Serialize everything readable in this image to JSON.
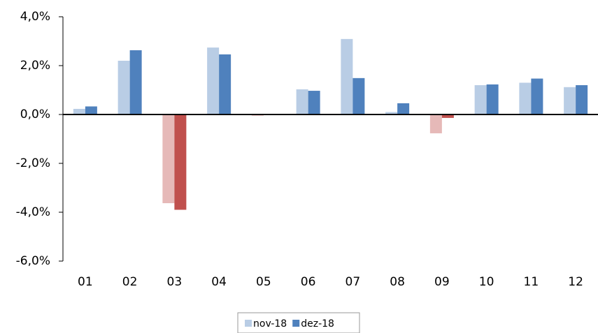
{
  "chart_data": {
    "type": "bar",
    "categories": [
      "01",
      "02",
      "03",
      "04",
      "05",
      "06",
      "07",
      "08",
      "09",
      "10",
      "11",
      "12"
    ],
    "series": [
      {
        "name": "nov-18",
        "color": "#b9cde5",
        "negative_color": "#e6b9b8",
        "values": [
          0.23,
          2.2,
          -3.63,
          2.74,
          -0.05,
          1.03,
          3.09,
          0.1,
          -0.77,
          1.2,
          1.3,
          1.12
        ]
      },
      {
        "name": "dez-18",
        "color": "#4f81bd",
        "negative_color": "#c0504d",
        "values": [
          0.33,
          2.63,
          -3.9,
          2.46,
          -0.02,
          0.97,
          1.49,
          0.46,
          -0.14,
          1.23,
          1.47,
          1.2
        ]
      }
    ],
    "ylim": [
      -6,
      4
    ],
    "yticks": [
      {
        "value": -6,
        "label": "-6,0%"
      },
      {
        "value": -4,
        "label": "-4,0%"
      },
      {
        "value": -2,
        "label": "-2,0%"
      },
      {
        "value": 0,
        "label": "0,0%"
      },
      {
        "value": 2,
        "label": "2,0%"
      },
      {
        "value": 4,
        "label": "4,0%"
      }
    ],
    "grid": false,
    "legend": "bottom"
  }
}
